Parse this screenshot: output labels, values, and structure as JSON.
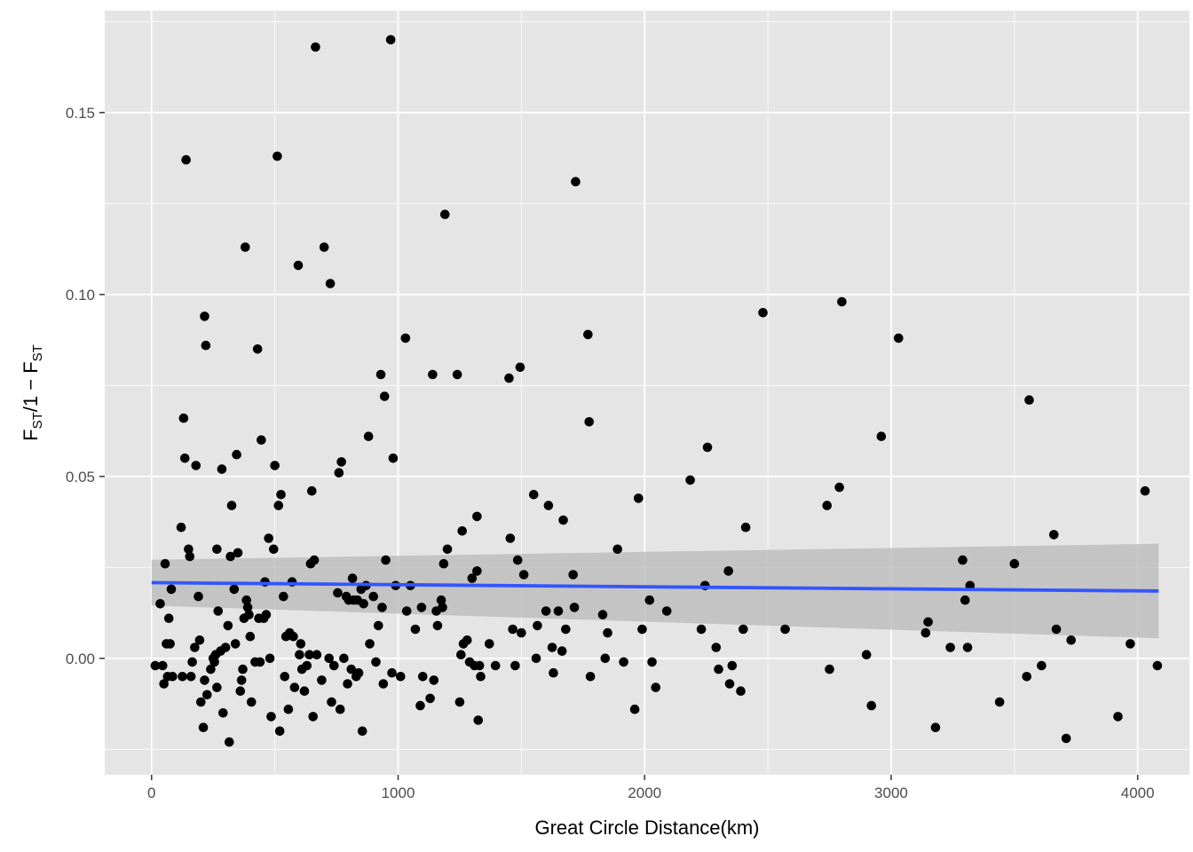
{
  "chart_data": {
    "type": "scatter",
    "title": "",
    "xlabel": "Great Circle Distance(km)",
    "ylabel": {
      "parts": [
        "F",
        "ST",
        "/1 − F",
        "ST"
      ]
    },
    "xlim": [
      -190,
      4210
    ],
    "ylim": [
      -0.032,
      0.178
    ],
    "x_ticks": [
      0,
      1000,
      2000,
      3000,
      4000
    ],
    "x_tick_labels": [
      "0",
      "1000",
      "2000",
      "3000",
      "4000"
    ],
    "y_ticks": [
      0.0,
      0.05,
      0.1,
      0.15
    ],
    "y_tick_labels": [
      "0.00",
      "0.05",
      "0.10",
      "0.15"
    ],
    "grid": true,
    "legend": "none",
    "colors": {
      "panel_bg": "#e5e5e5",
      "grid": "#ffffff",
      "points": "#000000",
      "fit_line": "#3355ff",
      "ci_band": "#bebebe"
    },
    "series": [
      {
        "type": "scatter",
        "points": [
          [
            15,
            -0.002
          ],
          [
            35,
            0.015
          ],
          [
            45,
            -0.002
          ],
          [
            50,
            -0.007
          ],
          [
            55,
            0.026
          ],
          [
            60,
            0.004
          ],
          [
            65,
            -0.005
          ],
          [
            70,
            0.011
          ],
          [
            75,
            0.004
          ],
          [
            80,
            0.019
          ],
          [
            85,
            -0.005
          ],
          [
            120,
            0.036
          ],
          [
            125,
            -0.005
          ],
          [
            130,
            0.066
          ],
          [
            135,
            0.055
          ],
          [
            140,
            0.137
          ],
          [
            150,
            0.03
          ],
          [
            155,
            0.028
          ],
          [
            160,
            -0.005
          ],
          [
            165,
            -0.001
          ],
          [
            175,
            0.003
          ],
          [
            180,
            0.053
          ],
          [
            190,
            0.017
          ],
          [
            195,
            0.005
          ],
          [
            200,
            -0.012
          ],
          [
            210,
            -0.019
          ],
          [
            215,
            -0.006
          ],
          [
            215,
            0.094
          ],
          [
            220,
            0.086
          ],
          [
            225,
            -0.01
          ],
          [
            240,
            -0.003
          ],
          [
            250,
            0.0
          ],
          [
            255,
            -0.001
          ],
          [
            260,
            0.001
          ],
          [
            265,
            -0.008
          ],
          [
            265,
            0.03
          ],
          [
            270,
            0.013
          ],
          [
            280,
            0.002
          ],
          [
            285,
            0.052
          ],
          [
            290,
            -0.015
          ],
          [
            300,
            0.003
          ],
          [
            310,
            0.009
          ],
          [
            315,
            -0.023
          ],
          [
            320,
            0.028
          ],
          [
            325,
            0.042
          ],
          [
            335,
            0.019
          ],
          [
            340,
            0.004
          ],
          [
            345,
            0.056
          ],
          [
            350,
            0.029
          ],
          [
            360,
            -0.009
          ],
          [
            365,
            -0.006
          ],
          [
            370,
            -0.003
          ],
          [
            375,
            0.011
          ],
          [
            380,
            0.113
          ],
          [
            385,
            0.016
          ],
          [
            390,
            0.014
          ],
          [
            395,
            0.012
          ],
          [
            400,
            0.006
          ],
          [
            405,
            -0.012
          ],
          [
            420,
            -0.001
          ],
          [
            430,
            0.085
          ],
          [
            435,
            0.011
          ],
          [
            440,
            -0.001
          ],
          [
            445,
            0.06
          ],
          [
            455,
            0.011
          ],
          [
            460,
            0.021
          ],
          [
            465,
            0.012
          ],
          [
            475,
            0.033
          ],
          [
            480,
            0.0
          ],
          [
            485,
            -0.016
          ],
          [
            495,
            0.03
          ],
          [
            500,
            0.053
          ],
          [
            510,
            0.138
          ],
          [
            515,
            0.042
          ],
          [
            520,
            -0.02
          ],
          [
            525,
            0.045
          ],
          [
            535,
            0.017
          ],
          [
            540,
            -0.005
          ],
          [
            545,
            0.006
          ],
          [
            555,
            -0.014
          ],
          [
            560,
            0.007
          ],
          [
            570,
            0.021
          ],
          [
            575,
            0.006
          ],
          [
            580,
            -0.008
          ],
          [
            595,
            0.108
          ],
          [
            600,
            0.001
          ],
          [
            605,
            0.004
          ],
          [
            610,
            -0.003
          ],
          [
            620,
            -0.009
          ],
          [
            630,
            -0.002
          ],
          [
            640,
            0.001
          ],
          [
            645,
            0.026
          ],
          [
            650,
            0.046
          ],
          [
            655,
            -0.016
          ],
          [
            660,
            0.027
          ],
          [
            665,
            0.168
          ],
          [
            670,
            0.001
          ],
          [
            690,
            -0.006
          ],
          [
            700,
            0.113
          ],
          [
            720,
            0.0
          ],
          [
            725,
            0.103
          ],
          [
            730,
            -0.012
          ],
          [
            740,
            -0.002
          ],
          [
            755,
            0.018
          ],
          [
            760,
            0.051
          ],
          [
            765,
            -0.014
          ],
          [
            770,
            0.054
          ],
          [
            780,
            0.0
          ],
          [
            790,
            0.017
          ],
          [
            795,
            -0.007
          ],
          [
            800,
            0.016
          ],
          [
            810,
            -0.003
          ],
          [
            815,
            0.022
          ],
          [
            820,
            0.016
          ],
          [
            830,
            -0.005
          ],
          [
            835,
            0.016
          ],
          [
            840,
            -0.004
          ],
          [
            850,
            0.019
          ],
          [
            855,
            -0.02
          ],
          [
            860,
            0.015
          ],
          [
            870,
            0.02
          ],
          [
            880,
            0.061
          ],
          [
            885,
            0.004
          ],
          [
            900,
            0.017
          ],
          [
            910,
            -0.001
          ],
          [
            920,
            0.009
          ],
          [
            930,
            0.078
          ],
          [
            935,
            0.014
          ],
          [
            940,
            -0.007
          ],
          [
            945,
            0.072
          ],
          [
            950,
            0.027
          ],
          [
            970,
            0.17
          ],
          [
            975,
            -0.004
          ],
          [
            980,
            0.055
          ],
          [
            990,
            0.02
          ],
          [
            1010,
            -0.005
          ],
          [
            1030,
            0.088
          ],
          [
            1035,
            0.013
          ],
          [
            1050,
            0.02
          ],
          [
            1070,
            0.008
          ],
          [
            1090,
            -0.013
          ],
          [
            1095,
            0.014
          ],
          [
            1100,
            -0.005
          ],
          [
            1130,
            -0.011
          ],
          [
            1140,
            0.078
          ],
          [
            1145,
            -0.006
          ],
          [
            1155,
            0.013
          ],
          [
            1160,
            0.009
          ],
          [
            1175,
            0.016
          ],
          [
            1180,
            0.014
          ],
          [
            1185,
            0.026
          ],
          [
            1190,
            0.122
          ],
          [
            1200,
            0.03
          ],
          [
            1240,
            0.078
          ],
          [
            1250,
            -0.012
          ],
          [
            1255,
            0.001
          ],
          [
            1260,
            0.035
          ],
          [
            1265,
            0.004
          ],
          [
            1280,
            0.005
          ],
          [
            1290,
            -0.001
          ],
          [
            1300,
            0.022
          ],
          [
            1310,
            -0.002
          ],
          [
            1320,
            0.039
          ],
          [
            1320,
            0.024
          ],
          [
            1325,
            -0.017
          ],
          [
            1330,
            -0.002
          ],
          [
            1335,
            -0.005
          ],
          [
            1370,
            0.004
          ],
          [
            1395,
            -0.002
          ],
          [
            1450,
            0.077
          ],
          [
            1455,
            0.033
          ],
          [
            1465,
            0.008
          ],
          [
            1475,
            -0.002
          ],
          [
            1485,
            0.027
          ],
          [
            1495,
            0.08
          ],
          [
            1500,
            0.007
          ],
          [
            1510,
            0.023
          ],
          [
            1550,
            0.045
          ],
          [
            1560,
            0.0
          ],
          [
            1565,
            0.009
          ],
          [
            1600,
            0.013
          ],
          [
            1610,
            0.042
          ],
          [
            1625,
            0.003
          ],
          [
            1630,
            -0.004
          ],
          [
            1650,
            0.013
          ],
          [
            1665,
            0.002
          ],
          [
            1670,
            0.038
          ],
          [
            1680,
            0.008
          ],
          [
            1710,
            0.023
          ],
          [
            1715,
            0.014
          ],
          [
            1720,
            0.131
          ],
          [
            1770,
            0.089
          ],
          [
            1775,
            0.065
          ],
          [
            1780,
            -0.005
          ],
          [
            1830,
            0.012
          ],
          [
            1840,
            0.0
          ],
          [
            1850,
            0.007
          ],
          [
            1890,
            0.03
          ],
          [
            1915,
            -0.001
          ],
          [
            1960,
            -0.014
          ],
          [
            1975,
            0.044
          ],
          [
            1990,
            0.008
          ],
          [
            2020,
            0.016
          ],
          [
            2030,
            -0.001
          ],
          [
            2045,
            -0.008
          ],
          [
            2090,
            0.013
          ],
          [
            2185,
            0.049
          ],
          [
            2230,
            0.008
          ],
          [
            2245,
            0.02
          ],
          [
            2255,
            0.058
          ],
          [
            2290,
            0.003
          ],
          [
            2300,
            -0.003
          ],
          [
            2340,
            0.024
          ],
          [
            2345,
            -0.007
          ],
          [
            2355,
            -0.002
          ],
          [
            2390,
            -0.009
          ],
          [
            2400,
            0.008
          ],
          [
            2410,
            0.036
          ],
          [
            2480,
            0.095
          ],
          [
            2570,
            0.008
          ],
          [
            2740,
            0.042
          ],
          [
            2750,
            -0.003
          ],
          [
            2790,
            0.047
          ],
          [
            2800,
            0.098
          ],
          [
            2900,
            0.001
          ],
          [
            2920,
            -0.013
          ],
          [
            2960,
            0.061
          ],
          [
            3030,
            0.088
          ],
          [
            3140,
            0.007
          ],
          [
            3150,
            0.01
          ],
          [
            3180,
            -0.019
          ],
          [
            3240,
            0.003
          ],
          [
            3290,
            0.027
          ],
          [
            3300,
            0.016
          ],
          [
            3310,
            0.003
          ],
          [
            3320,
            0.02
          ],
          [
            3440,
            -0.012
          ],
          [
            3500,
            0.026
          ],
          [
            3550,
            -0.005
          ],
          [
            3560,
            0.071
          ],
          [
            3610,
            -0.002
          ],
          [
            3660,
            0.034
          ],
          [
            3670,
            0.008
          ],
          [
            3710,
            -0.022
          ],
          [
            3730,
            0.005
          ],
          [
            3920,
            -0.016
          ],
          [
            3970,
            0.004
          ],
          [
            4030,
            0.046
          ],
          [
            4080,
            -0.002
          ]
        ]
      },
      {
        "type": "line",
        "method": "linear fit",
        "x": [
          0,
          4085
        ],
        "y": [
          0.0208,
          0.0185
        ],
        "ci_lower": [
          0.0145,
          0.0055
        ],
        "ci_upper": [
          0.0271,
          0.0315
        ]
      }
    ]
  }
}
